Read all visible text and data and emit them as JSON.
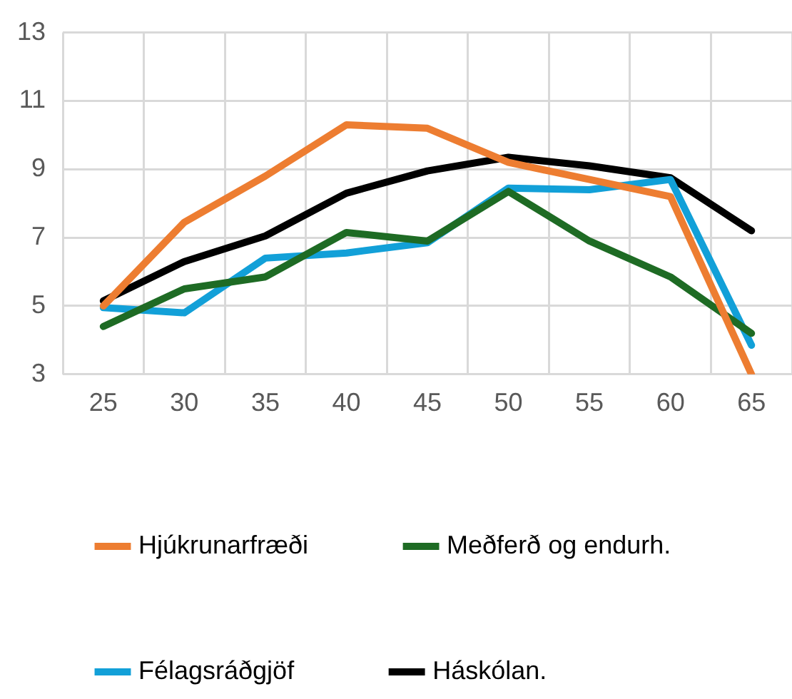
{
  "chart_data": {
    "type": "line",
    "categories": [
      "25",
      "30",
      "35",
      "40",
      "45",
      "50",
      "55",
      "60",
      "65"
    ],
    "series": [
      {
        "name": "Hjúkrunarfræði",
        "color": "#ed7d31",
        "values": [
          5.0,
          7.45,
          8.8,
          10.3,
          10.2,
          9.2,
          8.7,
          8.2,
          3.0
        ]
      },
      {
        "name": "Meðferð og endurh.",
        "color": "#1e6b24",
        "values": [
          4.4,
          5.5,
          5.85,
          7.15,
          6.9,
          8.35,
          6.9,
          5.85,
          4.2
        ]
      },
      {
        "name": "Félagsráðgjöf",
        "color": "#12a0d8",
        "values": [
          4.95,
          4.8,
          6.4,
          6.55,
          6.85,
          8.45,
          8.4,
          8.7,
          3.85
        ]
      },
      {
        "name": "Háskólan.",
        "color": "#000000",
        "values": [
          5.15,
          6.3,
          7.05,
          8.3,
          8.95,
          9.35,
          9.1,
          8.75,
          7.2
        ]
      }
    ],
    "ylim": [
      3,
      13
    ],
    "yticks": [
      3,
      5,
      7,
      9,
      11,
      13
    ],
    "grid": true,
    "legend": "bottom",
    "marker": "none",
    "line_style": "solid"
  }
}
